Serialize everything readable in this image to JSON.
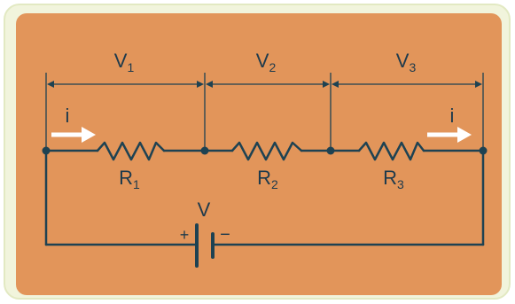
{
  "colors": {
    "panel": "#e2955a",
    "frame": "#f1f4dc",
    "wire": "#1e4252",
    "arrow": "#ffffff"
  },
  "voltage_labels": [
    {
      "main": "V",
      "sub": "1"
    },
    {
      "main": "V",
      "sub": "2"
    },
    {
      "main": "V",
      "sub": "3"
    }
  ],
  "resistor_labels": [
    {
      "main": "R",
      "sub": "1"
    },
    {
      "main": "R",
      "sub": "2"
    },
    {
      "main": "R",
      "sub": "3"
    }
  ],
  "current_label": "i",
  "battery": {
    "label": "V",
    "plus": "+",
    "minus": "−"
  }
}
